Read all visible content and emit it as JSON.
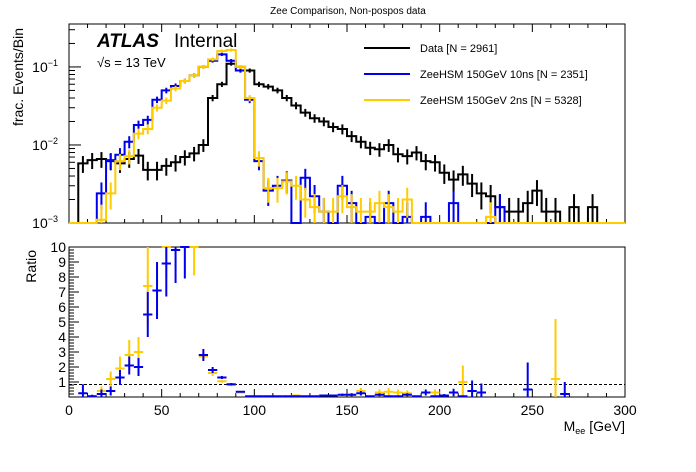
{
  "chart_data": [
    {
      "type": "line",
      "panel": "main",
      "title": "Zee Comparison, Non-pospos data",
      "xlabel": "",
      "ylabel": "frac. Events/Bin",
      "xlim": [
        0,
        300
      ],
      "ylim": [
        0.001,
        0.355
      ],
      "yscale": "log",
      "ytick_labels": [
        "10^-3",
        "10^-2",
        "10^-1"
      ],
      "yticks": [
        0.001,
        0.01,
        0.1
      ],
      "bin_width": 5,
      "x_bin_low_edges": [
        0,
        5,
        10,
        15,
        20,
        25,
        30,
        35,
        40,
        45,
        50,
        55,
        60,
        65,
        70,
        75,
        80,
        85,
        90,
        95,
        100,
        105,
        110,
        115,
        120,
        125,
        130,
        135,
        140,
        145,
        150,
        155,
        160,
        165,
        170,
        175,
        180,
        185,
        190,
        195,
        200,
        205,
        210,
        215,
        220,
        225,
        230,
        235,
        240,
        245,
        250,
        255,
        260,
        265,
        270,
        275,
        280,
        285,
        290,
        295
      ],
      "annotations": [
        "ATLAS",
        "Internal",
        "√s = 13 TeV"
      ],
      "legend": {
        "placement": "top-right",
        "entries": [
          {
            "label": "Data [N = 2961]",
            "color": "#000000"
          },
          {
            "label": "ZeeHSM 150GeV 10ns [N = 2351]",
            "color": "#0000ee"
          },
          {
            "label": "ZeeHSM 150GeV 2ns [N = 5328]",
            "color": "#ffcc00"
          }
        ]
      },
      "series": [
        {
          "name": "Data [N = 2961]",
          "color": "#000000",
          "values": [
            0.001,
            0.0058,
            0.0064,
            0.0066,
            0.0062,
            0.0058,
            0.0066,
            0.0073,
            0.0048,
            0.0048,
            0.0054,
            0.006,
            0.007,
            0.0078,
            0.01,
            0.04,
            0.06,
            0.11,
            0.1,
            0.09,
            0.06,
            0.056,
            0.05,
            0.04,
            0.032,
            0.026,
            0.022,
            0.02,
            0.017,
            0.016,
            0.013,
            0.011,
            0.0092,
            0.0088,
            0.01,
            0.0076,
            0.0072,
            0.008,
            0.0062,
            0.006,
            0.0044,
            0.0036,
            0.0042,
            0.0032,
            0.0024,
            0.0022,
            0.0016,
            0.0014,
            0.0014,
            0.0018,
            0.0026,
            0.0014,
            0.0014,
            0.001,
            0.0016,
            0.001,
            0.0016,
            0.001,
            0.001,
            0.001
          ]
        },
        {
          "name": "ZeeHSM 150GeV 10ns [N = 2351]",
          "color": "#0000ee",
          "values": [
            0.001,
            0.001,
            0.001,
            0.0024,
            0.0064,
            0.0075,
            0.011,
            0.018,
            0.021,
            0.038,
            0.05,
            0.057,
            0.066,
            0.078,
            0.1,
            0.12,
            0.145,
            0.12,
            0.09,
            0.038,
            0.0062,
            0.0026,
            0.003,
            0.0035,
            0.001,
            0.0038,
            0.0022,
            0.0014,
            0.001,
            0.003,
            0.0018,
            0.001,
            0.0012,
            0.001,
            0.0018,
            0.001,
            0.0012,
            0.001,
            0.0012,
            0.001,
            0.001,
            0.0018,
            0.001,
            0.001,
            0.001,
            0.001,
            0.0016,
            0.001,
            0.001,
            0.001,
            0.001,
            0.001,
            0.001,
            0.001,
            0.001,
            0.001,
            0.001,
            0.001,
            0.001,
            0.001
          ]
        },
        {
          "name": "ZeeHSM 150GeV 2ns [N = 5328]",
          "color": "#ffcc00",
          "values": [
            0.001,
            0.001,
            0.001,
            0.0011,
            0.0024,
            0.0062,
            0.0072,
            0.014,
            0.016,
            0.03,
            0.037,
            0.053,
            0.066,
            0.078,
            0.1,
            0.125,
            0.16,
            0.165,
            0.1,
            0.04,
            0.0068,
            0.0028,
            0.0028,
            0.0034,
            0.003,
            0.002,
            0.0016,
            0.0014,
            0.0014,
            0.0022,
            0.0016,
            0.0014,
            0.0014,
            0.0018,
            0.0016,
            0.0014,
            0.002,
            0.001,
            0.001,
            0.001,
            0.001,
            0.001,
            0.001,
            0.001,
            0.001,
            0.0012,
            0.001,
            0.001,
            0.001,
            0.001,
            0.001,
            0.001,
            0.001,
            0.001,
            0.001,
            0.001,
            0.001,
            0.001,
            0.001,
            0.001
          ]
        }
      ]
    },
    {
      "type": "scatter",
      "panel": "ratio",
      "title": "",
      "xlabel": "M_ee [GeV]",
      "ylabel": "Ratio",
      "xlim": [
        0,
        300
      ],
      "ylim": [
        0,
        10
      ],
      "xtick_labels": [
        "0",
        "50",
        "100",
        "150",
        "200",
        "250",
        "300"
      ],
      "ytick_labels": [
        "1",
        "2",
        "3",
        "4",
        "5",
        "6",
        "7",
        "8",
        "9",
        "10"
      ],
      "reference_line": {
        "y": 1,
        "style": "dashed"
      },
      "series": [
        {
          "name": "ZeeHSM 150GeV 10ns / Data",
          "color": "#0000ee",
          "points": [
            {
              "x": 7.5,
              "y": 0.25,
              "err": 0.6
            },
            {
              "x": 12.5,
              "y": 0.05,
              "err": 0.1
            },
            {
              "x": 17.5,
              "y": 0.2,
              "err": 0.3
            },
            {
              "x": 22.5,
              "y": 0.4,
              "err": 0.3
            },
            {
              "x": 27.5,
              "y": 1.3,
              "err": 0.5
            },
            {
              "x": 32.5,
              "y": 2.1,
              "err": 0.6
            },
            {
              "x": 37.5,
              "y": 2.0,
              "err": 0.6
            },
            {
              "x": 42.5,
              "y": 5.5,
              "err": 1.5
            },
            {
              "x": 47.5,
              "y": 7.1,
              "err": 1.9
            },
            {
              "x": 52.5,
              "y": 8.9,
              "err": 2.2
            },
            {
              "x": 57.5,
              "y": 9.8,
              "err": 2.2
            },
            {
              "x": 62.5,
              "y": 10.0,
              "err": 2.1
            },
            {
              "x": 72.5,
              "y": 2.8,
              "err": 0.4
            },
            {
              "x": 77.5,
              "y": 1.8,
              "err": 0.2
            },
            {
              "x": 82.5,
              "y": 1.3,
              "err": 0.1
            },
            {
              "x": 87.5,
              "y": 0.85,
              "err": 0.08
            },
            {
              "x": 92.5,
              "y": 0.35,
              "err": 0.05
            },
            {
              "x": 97.5,
              "y": 0.05,
              "err": 0.03
            },
            {
              "x": 102.5,
              "y": 0.05,
              "err": 0.03
            },
            {
              "x": 107.5,
              "y": 0.05,
              "err": 0.03
            },
            {
              "x": 112.5,
              "y": 0.05,
              "err": 0.03
            },
            {
              "x": 117.5,
              "y": 0.05,
              "err": 0.03
            },
            {
              "x": 122.5,
              "y": 0.05,
              "err": 0.03
            },
            {
              "x": 127.5,
              "y": 0.05,
              "err": 0.03
            },
            {
              "x": 132.5,
              "y": 0.05,
              "err": 0.03
            },
            {
              "x": 137.5,
              "y": 0.1,
              "err": 0.05
            },
            {
              "x": 142.5,
              "y": 0.1,
              "err": 0.05
            },
            {
              "x": 147.5,
              "y": 0.15,
              "err": 0.08
            },
            {
              "x": 152.5,
              "y": 0.15,
              "err": 0.1
            },
            {
              "x": 157.5,
              "y": 0.25,
              "err": 0.15
            },
            {
              "x": 162.5,
              "y": 0.05,
              "err": 0.05
            },
            {
              "x": 167.5,
              "y": 0.15,
              "err": 0.1
            },
            {
              "x": 172.5,
              "y": 0.05,
              "err": 0.05
            },
            {
              "x": 177.5,
              "y": 0.05,
              "err": 0.05
            },
            {
              "x": 182.5,
              "y": 0.15,
              "err": 0.1
            },
            {
              "x": 187.5,
              "y": 0.05,
              "err": 0.05
            },
            {
              "x": 192.5,
              "y": 0.3,
              "err": 0.2
            },
            {
              "x": 197.5,
              "y": 0.05,
              "err": 0.05
            },
            {
              "x": 202.5,
              "y": 0.1,
              "err": 0.1
            },
            {
              "x": 207.5,
              "y": 0.3,
              "err": 0.25
            },
            {
              "x": 212.5,
              "y": 0.05,
              "err": 0.05
            },
            {
              "x": 217.5,
              "y": 0.4,
              "err": 0.7
            },
            {
              "x": 222.5,
              "y": 0.3,
              "err": 0.6
            },
            {
              "x": 247.5,
              "y": 0.5,
              "err": 1.8
            },
            {
              "x": 267.5,
              "y": 0.2,
              "err": 0.8
            }
          ]
        },
        {
          "name": "ZeeHSM 150GeV 2ns / Data",
          "color": "#ffcc00",
          "points": [
            {
              "x": 12.5,
              "y": 0.05,
              "err": 0.1
            },
            {
              "x": 17.5,
              "y": 0.4,
              "err": 0.3
            },
            {
              "x": 22.5,
              "y": 1.2,
              "err": 0.5
            },
            {
              "x": 27.5,
              "y": 1.9,
              "err": 0.8
            },
            {
              "x": 32.5,
              "y": 2.8,
              "err": 1.0
            },
            {
              "x": 37.5,
              "y": 3.0,
              "err": 1.0
            },
            {
              "x": 42.5,
              "y": 7.4,
              "err": 2.6
            },
            {
              "x": 52.5,
              "y": 10.0,
              "err": 2.0
            },
            {
              "x": 67.5,
              "y": 10.0,
              "err": 1.9
            },
            {
              "x": 72.5,
              "y": 2.7,
              "err": 0.3
            },
            {
              "x": 77.5,
              "y": 1.6,
              "err": 0.2
            },
            {
              "x": 82.5,
              "y": 1.05,
              "err": 0.1
            },
            {
              "x": 87.5,
              "y": 0.8,
              "err": 0.08
            },
            {
              "x": 92.5,
              "y": 0.3,
              "err": 0.05
            },
            {
              "x": 122.5,
              "y": 0.1,
              "err": 0.05
            },
            {
              "x": 137.5,
              "y": 0.1,
              "err": 0.05
            },
            {
              "x": 152.5,
              "y": 0.15,
              "err": 0.1
            },
            {
              "x": 157.5,
              "y": 0.4,
              "err": 0.2
            },
            {
              "x": 167.5,
              "y": 0.3,
              "err": 0.2
            },
            {
              "x": 172.5,
              "y": 0.35,
              "err": 0.25
            },
            {
              "x": 177.5,
              "y": 0.3,
              "err": 0.2
            },
            {
              "x": 182.5,
              "y": 0.25,
              "err": 0.2
            },
            {
              "x": 197.5,
              "y": 0.3,
              "err": 0.2
            },
            {
              "x": 212.5,
              "y": 1.0,
              "err": 1.1
            },
            {
              "x": 262.5,
              "y": 1.2,
              "err": 4.0
            }
          ]
        }
      ]
    }
  ],
  "labels": {
    "title": "Zee Comparison, Non-pospos data",
    "atlas": "ATLAS",
    "internal": "Internal",
    "energy": "√s = 13 TeV",
    "ylabel_main": "frac. Events/Bin",
    "ylabel_ratio": "Ratio",
    "xlabel_main": "M",
    "xlabel_sub": "ee",
    "xlabel_unit": " [GeV]"
  }
}
